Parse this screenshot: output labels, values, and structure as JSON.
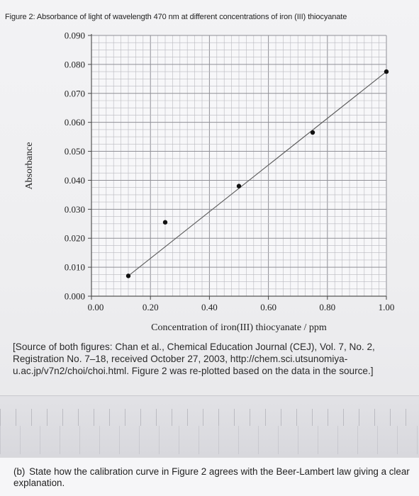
{
  "figure": {
    "title": "Figure 2: Absorbance of light of wavelength 470 nm at different concentrations of iron (III) thiocyanate"
  },
  "chart_data": {
    "type": "line",
    "xlabel": "Concentration of iron(III) thiocyanate / ppm",
    "ylabel": "Absorbance",
    "xlim": [
      0.0,
      1.0
    ],
    "ylim": [
      0.0,
      0.09
    ],
    "x_ticks": [
      "0.00",
      "0.20",
      "0.40",
      "0.60",
      "0.80",
      "1.00"
    ],
    "y_ticks": [
      "0.000",
      "0.010",
      "0.020",
      "0.030",
      "0.040",
      "0.050",
      "0.060",
      "0.070",
      "0.080",
      "0.090"
    ],
    "grid": true,
    "series": [
      {
        "marker": "point",
        "x": [
          0.125,
          0.25,
          0.5,
          0.75,
          1.0
        ],
        "y": [
          0.007,
          0.0255,
          0.038,
          0.0565,
          0.0775
        ]
      }
    ],
    "trendline": {
      "x": [
        0.125,
        1.0
      ],
      "y": [
        0.007,
        0.0775
      ]
    }
  },
  "source_note": "[Source of both figures: Chan et al., Chemical Education Journal (CEJ), Vol. 7, No. 2, Registration No. 7–18, received October 27, 2003, http://chem.sci.utsunomiya-u.ac.jp/v7n2/choi/choi.html. Figure 2 was re-plotted based on the data in the source.]",
  "question": {
    "label": "(b)",
    "text": "State how the calibration curve in Figure 2 agrees with the Beer-Lambert law giving a clear explanation."
  },
  "colors": {
    "line": "#5a5a5a",
    "marker": "#111111",
    "grid_minor": "#b9b9bf",
    "grid_major": "#8f8f96"
  }
}
